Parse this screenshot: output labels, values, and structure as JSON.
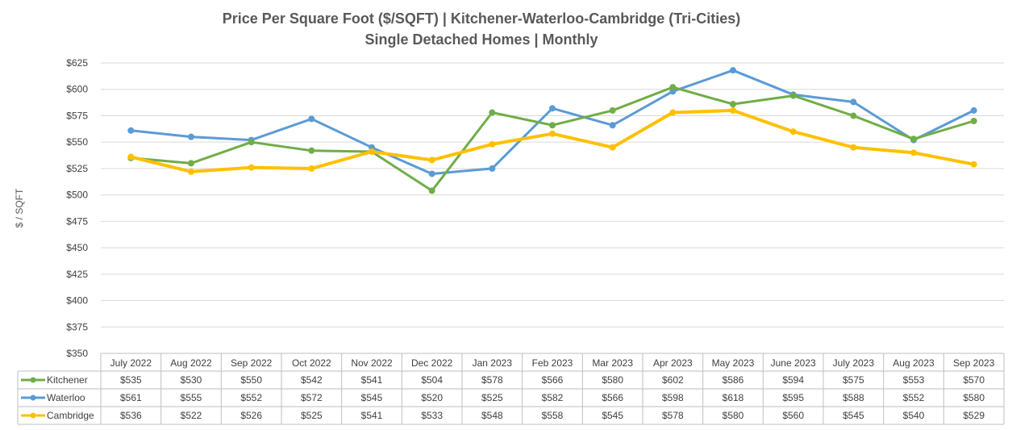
{
  "chart_data": {
    "type": "line",
    "title": "Price Per Square Foot ($/SQFT) | Kitchener-Waterloo-Cambridge (Tri-Cities)",
    "subtitle": "Single Detached Homes | Monthly",
    "ylabel": "$ / SQFT",
    "xlabel": "",
    "ylim": [
      350,
      625
    ],
    "ytick_step": 25,
    "ytick_labels": [
      "$350",
      "$375",
      "$400",
      "$425",
      "$450",
      "$475",
      "$500",
      "$525",
      "$550",
      "$575",
      "$600",
      "$625"
    ],
    "grid": true,
    "legend": "data-table",
    "categories": [
      "July 2022",
      "Aug 2022",
      "Sep 2022",
      "Oct 2022",
      "Nov 2022",
      "Dec 2022",
      "Jan 2023",
      "Feb 2023",
      "Mar 2023",
      "Apr 2023",
      "May 2023",
      "June 2023",
      "July 2023",
      "Aug 2023",
      "Sep 2023"
    ],
    "series": [
      {
        "name": "Kitchener",
        "color": "#70ad47",
        "values": [
          535,
          530,
          550,
          542,
          541,
          504,
          578,
          566,
          580,
          602,
          586,
          594,
          575,
          553,
          570
        ],
        "labels": [
          "$535",
          "$530",
          "$550",
          "$542",
          "$541",
          "$504",
          "$578",
          "$566",
          "$580",
          "$602",
          "$586",
          "$594",
          "$575",
          "$553",
          "$570"
        ]
      },
      {
        "name": "Waterloo",
        "color": "#5b9bd5",
        "values": [
          561,
          555,
          552,
          572,
          545,
          520,
          525,
          582,
          566,
          598,
          618,
          595,
          588,
          552,
          580
        ],
        "labels": [
          "$561",
          "$555",
          "$552",
          "$572",
          "$545",
          "$520",
          "$525",
          "$582",
          "$566",
          "$598",
          "$618",
          "$595",
          "$588",
          "$552",
          "$580"
        ]
      },
      {
        "name": "Cambridge",
        "color": "#ffc000",
        "values": [
          536,
          522,
          526,
          525,
          541,
          533,
          548,
          558,
          545,
          578,
          580,
          560,
          545,
          540,
          529
        ],
        "labels": [
          "$536",
          "$522",
          "$526",
          "$525",
          "$541",
          "$533",
          "$548",
          "$558",
          "$545",
          "$578",
          "$580",
          "$560",
          "$545",
          "$540",
          "$529"
        ]
      }
    ]
  }
}
